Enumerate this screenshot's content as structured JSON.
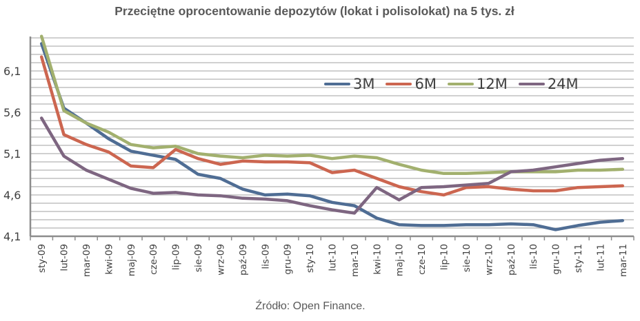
{
  "title": "Przeciętne oprocentowanie depozytów (lokat i polisolokat) na 5 tys. zł",
  "source": "Źródło: Open Finance.",
  "chart_data": {
    "type": "line",
    "title": "Przeciętne oprocentowanie depozytów (lokat i polisolokat) na 5 tys. zł",
    "xlabel": "",
    "ylabel": "",
    "ylim": [
      4.1,
      6.5
    ],
    "yticks": [
      "4,1",
      "4,6",
      "5,1",
      "5,6",
      "6,1"
    ],
    "ytick_values": [
      4.1,
      4.6,
      5.1,
      5.6,
      6.1
    ],
    "grid": true,
    "grid_step": 0.1,
    "legend_position": "inside-top-right",
    "categories": [
      "sty-09",
      "lut-09",
      "mar-09",
      "kwi-09",
      "maj-09",
      "cze-09",
      "lip-09",
      "sie-09",
      "wrz-09",
      "paź-09",
      "lis-09",
      "gru-09",
      "sty-10",
      "lut-10",
      "mar-10",
      "kwi-10",
      "maj-10",
      "cze-10",
      "lip-10",
      "sie-10",
      "wrz-10",
      "paź-10",
      "lis-10",
      "gru-10",
      "sty-11",
      "lut-11",
      "mar-11"
    ],
    "series": [
      {
        "name": "3M",
        "color": "#4F6D94",
        "values": [
          6.43,
          5.65,
          5.47,
          5.28,
          5.13,
          5.08,
          5.03,
          4.85,
          4.8,
          4.67,
          4.6,
          4.61,
          4.59,
          4.51,
          4.47,
          4.32,
          4.24,
          4.23,
          4.23,
          4.24,
          4.24,
          4.25,
          4.24,
          4.18,
          4.23,
          4.27,
          4.29
        ]
      },
      {
        "name": "6M",
        "color": "#CC6650",
        "values": [
          6.27,
          5.33,
          5.21,
          5.12,
          4.95,
          4.93,
          5.15,
          5.04,
          4.97,
          5.01,
          5.0,
          5.0,
          4.99,
          4.87,
          4.9,
          4.8,
          4.7,
          4.64,
          4.6,
          4.69,
          4.7,
          4.67,
          4.65,
          4.65,
          4.69,
          4.7,
          4.71
        ]
      },
      {
        "name": "12M",
        "color": "#A2B06E",
        "values": [
          6.52,
          5.62,
          5.47,
          5.36,
          5.21,
          5.17,
          5.19,
          5.1,
          5.07,
          5.05,
          5.08,
          5.07,
          5.08,
          5.04,
          5.07,
          5.05,
          4.97,
          4.9,
          4.86,
          4.86,
          4.87,
          4.88,
          4.88,
          4.88,
          4.9,
          4.9,
          4.91
        ]
      },
      {
        "name": "24M",
        "color": "#7E6681",
        "values": [
          5.53,
          5.07,
          4.9,
          4.79,
          4.68,
          4.62,
          4.63,
          4.6,
          4.59,
          4.56,
          4.55,
          4.53,
          4.47,
          4.42,
          4.38,
          4.69,
          4.54,
          4.69,
          4.7,
          4.72,
          4.74,
          4.88,
          4.9,
          4.94,
          4.98,
          5.02,
          5.04
        ]
      }
    ]
  }
}
